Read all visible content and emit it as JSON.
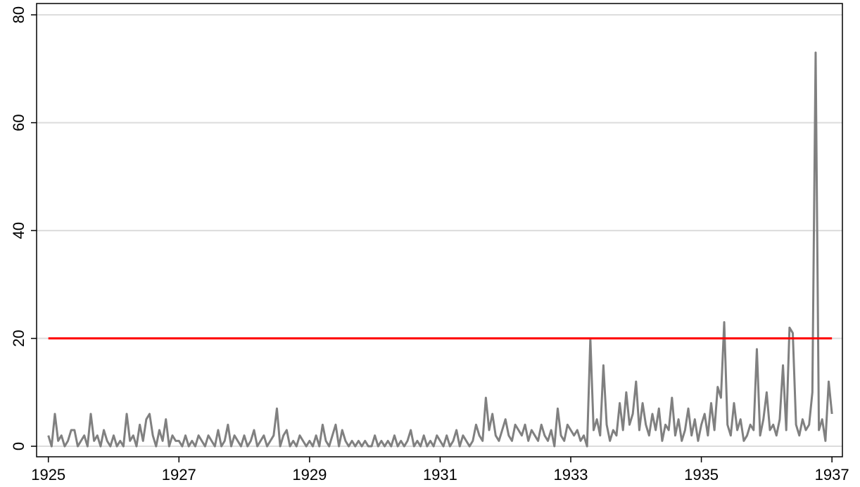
{
  "chart_data": {
    "type": "line",
    "xlim": [
      1924.82,
      1937.16
    ],
    "ylim": [
      -1.95,
      82.1
    ],
    "xticks": [
      1925,
      1927,
      1929,
      1931,
      1933,
      1935,
      1937
    ],
    "yticks": [
      0,
      20,
      40,
      60,
      80
    ],
    "grid": true,
    "series": [
      {
        "color": "#808080",
        "x": [
          1925,
          1925.05,
          1925.1,
          1925.15,
          1925.2,
          1925.25,
          1925.3,
          1925.35,
          1925.4,
          1925.45,
          1925.5,
          1925.55,
          1925.6,
          1925.65,
          1925.7,
          1925.75,
          1925.8,
          1925.85,
          1925.9,
          1925.95,
          1926,
          1926.05,
          1926.1,
          1926.15,
          1926.2,
          1926.25,
          1926.3,
          1926.35,
          1926.4,
          1926.45,
          1926.5,
          1926.55,
          1926.6,
          1926.65,
          1926.7,
          1926.75,
          1926.8,
          1926.85,
          1926.9,
          1926.95,
          1927,
          1927.05,
          1927.1,
          1927.15,
          1927.2,
          1927.25,
          1927.3,
          1927.35,
          1927.4,
          1927.45,
          1927.5,
          1927.55,
          1927.6,
          1927.65,
          1927.7,
          1927.75,
          1927.8,
          1927.85,
          1927.9,
          1927.95,
          1928,
          1928.05,
          1928.1,
          1928.15,
          1928.2,
          1928.25,
          1928.3,
          1928.35,
          1928.4,
          1928.45,
          1928.5,
          1928.55,
          1928.6,
          1928.65,
          1928.7,
          1928.75,
          1928.8,
          1928.85,
          1928.9,
          1928.95,
          1929,
          1929.05,
          1929.1,
          1929.15,
          1929.2,
          1929.25,
          1929.3,
          1929.35,
          1929.4,
          1929.45,
          1929.5,
          1929.55,
          1929.6,
          1929.65,
          1929.7,
          1929.75,
          1929.8,
          1929.85,
          1929.9,
          1929.95,
          1930,
          1930.05,
          1930.1,
          1930.15,
          1930.2,
          1930.25,
          1930.3,
          1930.35,
          1930.4,
          1930.45,
          1930.5,
          1930.55,
          1930.6,
          1930.65,
          1930.7,
          1930.75,
          1930.8,
          1930.85,
          1930.9,
          1930.95,
          1931,
          1931.05,
          1931.1,
          1931.15,
          1931.2,
          1931.25,
          1931.3,
          1931.35,
          1931.4,
          1931.45,
          1931.5,
          1931.55,
          1931.6,
          1931.65,
          1931.7,
          1931.75,
          1931.8,
          1931.85,
          1931.9,
          1931.95,
          1932,
          1932.05,
          1932.1,
          1932.15,
          1932.2,
          1932.25,
          1932.3,
          1932.35,
          1932.4,
          1932.45,
          1932.5,
          1932.55,
          1932.6,
          1932.65,
          1932.7,
          1932.75,
          1932.8,
          1932.85,
          1932.9,
          1932.95,
          1933,
          1933.05,
          1933.1,
          1933.15,
          1933.2,
          1933.25,
          1933.3,
          1933.35,
          1933.4,
          1933.45,
          1933.5,
          1933.55,
          1933.6,
          1933.65,
          1933.7,
          1933.75,
          1933.8,
          1933.85,
          1933.9,
          1933.95,
          1934,
          1934.05,
          1934.1,
          1934.15,
          1934.2,
          1934.25,
          1934.3,
          1934.35,
          1934.4,
          1934.45,
          1934.5,
          1934.55,
          1934.6,
          1934.65,
          1934.7,
          1934.75,
          1934.8,
          1934.85,
          1934.9,
          1934.95,
          1935,
          1935.05,
          1935.1,
          1935.15,
          1935.2,
          1935.25,
          1935.3,
          1935.35,
          1935.4,
          1935.45,
          1935.5,
          1935.55,
          1935.6,
          1935.65,
          1935.7,
          1935.75,
          1935.8,
          1935.85,
          1935.9,
          1935.95,
          1936,
          1936.05,
          1936.1,
          1936.15,
          1936.2,
          1936.25,
          1936.3,
          1936.35,
          1936.4,
          1936.45,
          1936.5,
          1936.55,
          1936.6,
          1936.65,
          1936.7,
          1936.75,
          1936.8,
          1936.85,
          1936.9,
          1936.95,
          1937
        ],
        "values": [
          2,
          0,
          6,
          1,
          2,
          0,
          1,
          3,
          3,
          0,
          1,
          2,
          0,
          6,
          1,
          2,
          0,
          3,
          1,
          0,
          2,
          0,
          1,
          0,
          6,
          1,
          2,
          0,
          4,
          1,
          5,
          6,
          2,
          0,
          3,
          1,
          5,
          0,
          2,
          1,
          1,
          0,
          2,
          0,
          1,
          0,
          2,
          1,
          0,
          2,
          1,
          0,
          3,
          0,
          1,
          4,
          0,
          2,
          1,
          0,
          2,
          0,
          1,
          3,
          0,
          1,
          2,
          0,
          1,
          2,
          7,
          0,
          2,
          3,
          0,
          1,
          0,
          2,
          1,
          0,
          1,
          0,
          2,
          0,
          4,
          1,
          0,
          2,
          4,
          0,
          3,
          1,
          0,
          1,
          0,
          1,
          0,
          1,
          0,
          0,
          2,
          0,
          1,
          0,
          1,
          0,
          2,
          0,
          1,
          0,
          1,
          3,
          0,
          1,
          0,
          2,
          0,
          1,
          0,
          2,
          1,
          0,
          2,
          0,
          1,
          3,
          0,
          2,
          1,
          0,
          1,
          4,
          2,
          1,
          9,
          3,
          6,
          2,
          1,
          3,
          5,
          2,
          1,
          4,
          3,
          2,
          4,
          1,
          3,
          2,
          1,
          4,
          2,
          1,
          3,
          0,
          7,
          2,
          1,
          4,
          3,
          2,
          3,
          1,
          2,
          0,
          20,
          3,
          5,
          2,
          15,
          4,
          1,
          3,
          2,
          8,
          3,
          10,
          4,
          6,
          12,
          3,
          8,
          4,
          2,
          6,
          3,
          7,
          1,
          4,
          3,
          9,
          2,
          5,
          1,
          3,
          7,
          2,
          5,
          1,
          4,
          6,
          2,
          8,
          3,
          11,
          9,
          23,
          4,
          2,
          8,
          3,
          5,
          1,
          2,
          4,
          3,
          18,
          2,
          5,
          10,
          3,
          4,
          2,
          5,
          15,
          3,
          22,
          21,
          4,
          2,
          5,
          3,
          4,
          10,
          73,
          3,
          5,
          1,
          12,
          6
        ]
      },
      {
        "color": "#ff0000",
        "x": [
          1925,
          1937
        ],
        "values": [
          20,
          20
        ]
      }
    ]
  }
}
